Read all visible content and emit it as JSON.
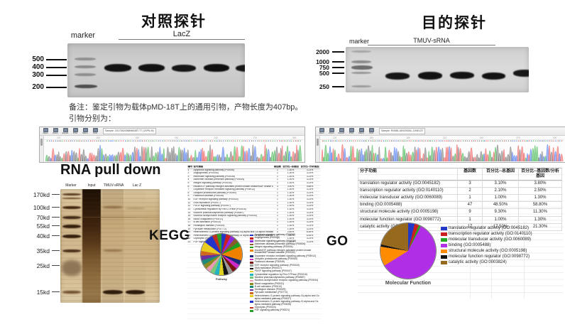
{
  "gels": {
    "control": {
      "title": "对照探针",
      "marker_label": "marker",
      "sample_label": "LacZ",
      "ladder": [
        "500",
        "400",
        "300",
        "200"
      ]
    },
    "target": {
      "title": "目的探针",
      "marker_label": "marker",
      "sample_label": "TMUV-sRNA",
      "ladder": [
        "2000",
        "1000",
        "750",
        "500",
        "250"
      ]
    }
  },
  "notes": {
    "line1": "备注：鉴定引物为载体pMD-18T上的通用引物，产物长度为407bp。",
    "line2": "引物分别为："
  },
  "traces": {
    "base_colors": [
      "#3cb54a",
      "#4472f0",
      "#707070",
      "#f05050"
    ],
    "ruler_start": 120,
    "ruler_step": 30,
    "left": {
      "sample": "Sample: 2017052008896638T-T7 (1SPN-M)",
      "buttons": [
        "Open",
        "Zoom",
        "Export",
        "Print",
        "Menu",
        "Find"
      ]
    },
    "right": {
      "sample": "Sample: R0088-16N19026L-13NE13T",
      "buttons": [
        "Open",
        "Zoom",
        "Export",
        "Print",
        "Menu",
        "Find"
      ]
    }
  },
  "pulldown": {
    "title": "RNA pull down",
    "lanes": [
      "Marker",
      "Input",
      "TMUV-sRNA",
      "Lac Z"
    ],
    "weights": [
      "170kd",
      "100kd",
      "70kd",
      "55kd",
      "40kd",
      "35kd",
      "25kd",
      "15kd"
    ]
  },
  "kegg": {
    "label": "KEGG",
    "axis_label": "Pathway",
    "table": {
      "headers": [
        "编号",
        "信号通路",
        "基因数",
        "百分比--总基因",
        "百分比--分析基因"
      ],
      "values": [
        [
          "1",
          "1.30%",
          "3.23%"
        ],
        [
          "1",
          "1.30%",
          "3.23%"
        ],
        [
          "1",
          "1.30%",
          "3.23%"
        ],
        [
          "1",
          "1.30%",
          "3.23%"
        ],
        [
          "1",
          "1.30%",
          "3.23%"
        ],
        [
          "3",
          "3.90%",
          "9.68%"
        ],
        [
          "1",
          "1.30%",
          "3.23%"
        ],
        [
          "1",
          "1.30%",
          "3.23%"
        ],
        [
          "1",
          "1.30%",
          "3.23%"
        ],
        [
          "1",
          "1.30%",
          "3.23%"
        ],
        [
          "1",
          "1.30%",
          "3.23%"
        ],
        [
          "1",
          "1.30%",
          "3.23%"
        ],
        [
          "1",
          "1.30%",
          "3.23%"
        ],
        [
          "1",
          "1.30%",
          "3.23%"
        ],
        [
          "1",
          "1.30%",
          "3.23%"
        ],
        [
          "1",
          "1.30%",
          "3.23%"
        ],
        [
          "1",
          "1.30%",
          "3.23%"
        ],
        [
          "1",
          "1.30%",
          "3.23%"
        ],
        [
          "1",
          "1.30%",
          "3.23%"
        ],
        [
          "2",
          "2.60%",
          "6.45%"
        ],
        [
          "2",
          "2.60%",
          "6.45%"
        ],
        [
          "1",
          "1.30%",
          "3.23%"
        ],
        [
          "1",
          "1.30%",
          "3.23%"
        ]
      ]
    }
  },
  "go": {
    "label": "GO",
    "axis_label": "Molecular Function",
    "table": {
      "headers": [
        "分子功能",
        "基因数",
        "百分比--总基因",
        "百分比--基因数/分析基因"
      ],
      "values": [
        [
          "3",
          "3.10%",
          "3.80%"
        ],
        [
          "2",
          "2.10%",
          "2.50%"
        ],
        [
          "1",
          "1.00%",
          "1.30%"
        ],
        [
          "47",
          "48.50%",
          "58.80%"
        ],
        [
          "9",
          "9.30%",
          "11.30%"
        ],
        [
          "1",
          "1.00%",
          "1.30%"
        ],
        [
          "17",
          "17.50%",
          "21.30%"
        ]
      ]
    }
  },
  "chart_data": [
    {
      "type": "pie",
      "title": "Pathway",
      "legend_position": "right",
      "labels": [
        "Apoptosis signaling pathway (P00006)",
        "Angiogenesis (P00005)",
        "Interleukin signaling pathway (P00036)",
        "Alzheimer disease-presenilin pathway (P00004)",
        "Integrin signaling pathway (P00034)",
        "Insulin/IGF pathway-mitogen activated protein kinase kinase/MAP kinase cascade (P00032)",
        "Dopamine receptor mediated signaling pathway (P05912)",
        "Ubiquitin proteasome pathway (P00060)",
        "Parkinson disease (P00049)",
        "EGF receptor signaling pathway (P00018)",
        "DNA replication (P00017)",
        "PDGF signaling pathway (P00047)",
        "Cytoskeletal regulation by Rho GTPase (P00016)",
        "Nicotine pharmacodynamics pathway (P06587)",
        "Nicotinic acetylcholine receptor signaling pathway (P00044)",
        "Blood coagulation (P00011)",
        "B cell activation (P00010)",
        "Huntington disease (P00029)",
        "Pyruvate metabolism (P02772)",
        "Heterotrimeric G-protein signaling pathway-Gq alpha and Go alpha mediated pathway (P00027)",
        "Heterotrimeric G-protein signaling pathway-Gi alpha and Gs alpha mediated pathway (P00026)",
        "Glycolysis (P00024)",
        "FGF signaling pathway (P00021)"
      ],
      "values": [
        1,
        1,
        1,
        1,
        1,
        3,
        1,
        1,
        1,
        1,
        1,
        1,
        1,
        1,
        1,
        1,
        1,
        1,
        1,
        2,
        2,
        1,
        1
      ],
      "colors": [
        "#2438c8",
        "#cc2020",
        "#8a2be2",
        "#8a5a2a",
        "#1fa11f",
        "#f08000",
        "#1a2a7a",
        "#cc2ac8",
        "#7a1212",
        "#9a9a9a",
        "#141414",
        "#e0d020",
        "#20b4c4",
        "#7ac87a",
        "#e89ab0",
        "#8a8a20",
        "#1f8a78",
        "#6a30a0",
        "#d06820",
        "#e8cc20",
        "#2233cc",
        "#c03020",
        "#2aa02a"
      ]
    },
    {
      "type": "pie",
      "title": "Molecular Function",
      "legend_position": "right",
      "labels": [
        "translation regulator activity (GO:0045182)",
        "transcription regulator activity (GO:0140110)",
        "molecular transducer activity (GO:0060089)",
        "binding (GO:0005488)",
        "structural molecule activity (GO:0005198)",
        "molecular function regulator (GO:0098772)",
        "catalytic activity (GO:0003824)"
      ],
      "values": [
        3.8,
        2.5,
        1.3,
        58.8,
        11.3,
        1.3,
        21.3
      ],
      "colors": [
        "#2438c8",
        "#cc2020",
        "#22a822",
        "#b02ee6",
        "#ff8c00",
        "#141414",
        "#96691e"
      ]
    }
  ]
}
